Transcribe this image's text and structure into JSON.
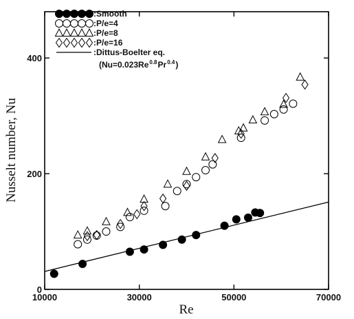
{
  "chart_data": {
    "type": "scatter",
    "xlabel": "Re",
    "ylabel": "Nusselt number, Nu",
    "xlim": [
      10000,
      70000
    ],
    "ylim": [
      0,
      480
    ],
    "x_ticks": [
      "10000",
      "30000",
      "50000",
      "70000"
    ],
    "y_ticks": [
      "0",
      "200",
      "400"
    ],
    "grid": false,
    "legend_position": "top-left",
    "series": [
      {
        "name": ":Smooth",
        "marker": "filled-circle",
        "points": [
          [
            12000,
            27
          ],
          [
            18000,
            44
          ],
          [
            28000,
            65
          ],
          [
            31000,
            69
          ],
          [
            35000,
            77
          ],
          [
            39000,
            86
          ],
          [
            42000,
            94
          ],
          [
            48000,
            110
          ],
          [
            50500,
            121
          ],
          [
            53000,
            124
          ],
          [
            54500,
            133
          ],
          [
            55500,
            132
          ]
        ]
      },
      {
        "name": ":P/e=4",
        "marker": "open-circle",
        "points": [
          [
            17000,
            78
          ],
          [
            19000,
            86
          ],
          [
            21000,
            93
          ],
          [
            23000,
            100
          ],
          [
            26000,
            108
          ],
          [
            28000,
            125
          ],
          [
            31000,
            136
          ],
          [
            35500,
            144
          ],
          [
            38000,
            170
          ],
          [
            40000,
            182
          ],
          [
            42000,
            194
          ],
          [
            44000,
            206
          ],
          [
            45500,
            216
          ],
          [
            51500,
            262
          ],
          [
            56500,
            292
          ],
          [
            58500,
            303
          ],
          [
            60500,
            311
          ],
          [
            62500,
            321
          ]
        ]
      },
      {
        "name": ":P/e=8",
        "marker": "open-triangle",
        "points": [
          [
            17000,
            94
          ],
          [
            19000,
            101
          ],
          [
            23000,
            117
          ],
          [
            27500,
            133
          ],
          [
            31000,
            156
          ],
          [
            36000,
            182
          ],
          [
            40000,
            204
          ],
          [
            44000,
            229
          ],
          [
            47500,
            259
          ],
          [
            51000,
            274
          ],
          [
            52000,
            279
          ],
          [
            54000,
            293
          ],
          [
            56500,
            307
          ],
          [
            60500,
            320
          ],
          [
            64000,
            367
          ]
        ]
      },
      {
        "name": ":P/e=16",
        "marker": "open-diamond",
        "points": [
          [
            19000,
            92
          ],
          [
            21000,
            94
          ],
          [
            26000,
            113
          ],
          [
            29500,
            130
          ],
          [
            31000,
            144
          ],
          [
            35000,
            157
          ],
          [
            40000,
            179
          ],
          [
            46000,
            227
          ],
          [
            51500,
            269
          ],
          [
            61000,
            331
          ],
          [
            65000,
            354
          ]
        ]
      },
      {
        "name": ":Dittus-Boelter eq.",
        "marker": "line",
        "equation_line1": ":Dittus-Boelter eq.",
        "equation_main": "(Nu=0.023Re",
        "equation_exp1": "0.8",
        "equation_mid": "Pr",
        "equation_exp2": "0.4",
        "equation_close": ")",
        "points": [
          [
            10000,
            31
          ],
          [
            70000,
            151
          ]
        ]
      }
    ]
  }
}
